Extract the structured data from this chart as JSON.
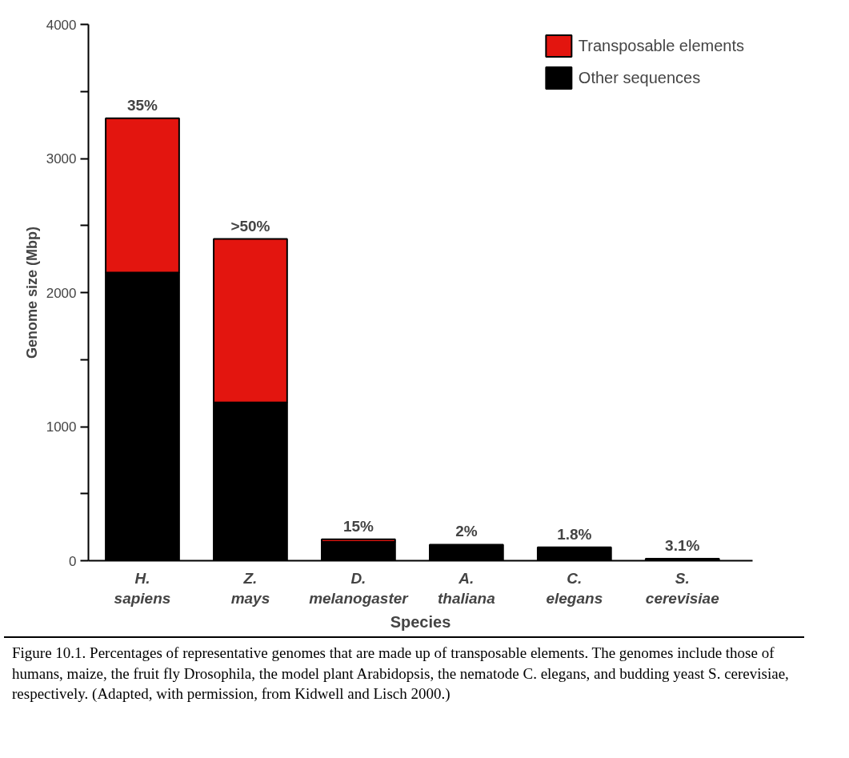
{
  "chart_data": {
    "type": "bar",
    "stacked": true,
    "xlabel": "Species",
    "ylabel": "Genome size (Mbp)",
    "categories": [
      "H. sapiens",
      "Z. mays",
      "D. melanogaster",
      "A. thaliana",
      "C. elegans",
      "S. cerevisiae"
    ],
    "series": [
      {
        "name": "Other sequences",
        "color": "#000000",
        "values": [
          2150,
          1180,
          140,
          120,
          100,
          15
        ]
      },
      {
        "name": "Transposable elements",
        "color": "#e3150f",
        "values": [
          1150,
          1220,
          20,
          null,
          null,
          null
        ]
      }
    ],
    "ylim": [
      0,
      4000
    ],
    "yticks": [
      0,
      {
        "value": 500,
        "label": null
      },
      1000,
      {
        "value": 1500,
        "label": null
      },
      2000,
      {
        "value": 2500,
        "label": null
      },
      3000,
      {
        "value": 3500,
        "label": null
      },
      4000
    ],
    "grid": false,
    "legend": "top right",
    "annotations": [
      {
        "text": "35%",
        "x": "H. sapiens",
        "y": 3300
      },
      {
        "text": ">50%",
        "x": "Z. mays",
        "y": 2400
      },
      {
        "text": "15%",
        "x": "D. melanogaster",
        "y": 160
      },
      {
        "text": "2%",
        "x": "A. thaliana",
        "y": 120
      },
      {
        "text": "1.8%",
        "x": "C. elegans",
        "y": 100
      },
      {
        "text": "3.1%",
        "x": "S. cerevisiae",
        "y": 15
      },
      "Figure 10.1. Percentages of representative genomes that are made up of transposable elements. The genomes include those of humans, maize, the fruit fly Drosophila, the model plant Arabidopsis, the nematode C. elegans, and budding yeast S. cerevisiae, respectively. (Adapted, with permission, from Kidwell and Lisch 2000.)"
    ]
  }
}
